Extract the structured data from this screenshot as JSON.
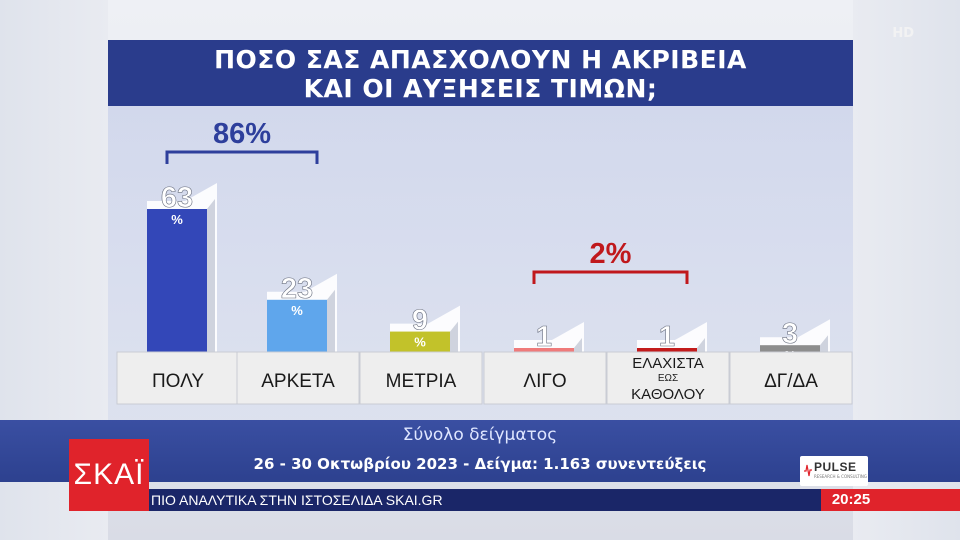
{
  "title": {
    "line1": "ΠΟΣΟ ΣΑΣ ΑΠΑΣΧΟΛΟΥΝ Η ΑΚΡΙΒΕΙΑ",
    "line2": "ΚΑΙ ΟΙ ΑΥΞΗΣΕΙΣ ΤΙΜΩΝ;"
  },
  "hd_badge": "HD",
  "chart_data": {
    "type": "bar",
    "title": "ΠΟΣΟ ΣΑΣ ΑΠΑΣΧΟΛΟΥΝ Η ΑΚΡΙΒΕΙΑ ΚΑΙ ΟΙ ΑΥΞΗΣΕΙΣ ΤΙΜΩΝ;",
    "categories": [
      [
        "ΠΟΛΥ"
      ],
      [
        "ΑΡΚΕΤΑ"
      ],
      [
        "ΜΕΤΡΙΑ"
      ],
      [
        "ΛΙΓΟ"
      ],
      [
        "ΕΛΑΧΙΣΤΑ",
        "ΕΩΣ",
        "ΚΑΘΟΛΟΥ"
      ],
      [
        "ΔΓ/ΔΑ"
      ]
    ],
    "values": [
      63,
      23,
      9,
      1,
      1,
      3
    ],
    "unit": "%",
    "colors": [
      "#3347b8",
      "#5fa6ec",
      "#c2c22a",
      "#ef7a7a",
      "#c21b1b",
      "#8d8d8d"
    ],
    "ylim": [
      0,
      63
    ],
    "groups": [
      {
        "label": "86%",
        "from": 0,
        "to": 1,
        "color": "#2e3f9c"
      },
      {
        "label": "2%",
        "from": 3,
        "to": 4,
        "color": "#c0181c"
      }
    ],
    "legend": "none",
    "grid": false
  },
  "footer": {
    "subtitle": "Σύνολο δείγματος",
    "info": "26 - 30 Οκτωβρίου 2023 - Δείγμα: 1.163 συνεντεύξεις"
  },
  "pollster": {
    "name": "PULSE",
    "tagline": "RESEARCH & CONSULTING"
  },
  "channel": {
    "logo": "ΣΚΑΪ"
  },
  "ticker": {
    "text": "ΠΙΟ ΑΝΑΛΥΤΙΚΑ ΣΤΗΝ ΙΣΤΟΣΕΛΙΔΑ SKAI.GR"
  },
  "clock": "20:25",
  "colors": {
    "title_bg": "#2a3c8c",
    "footer_bg": "#2d418f",
    "ticker_bg": "#1a2668",
    "brand_red": "#e0232b"
  }
}
